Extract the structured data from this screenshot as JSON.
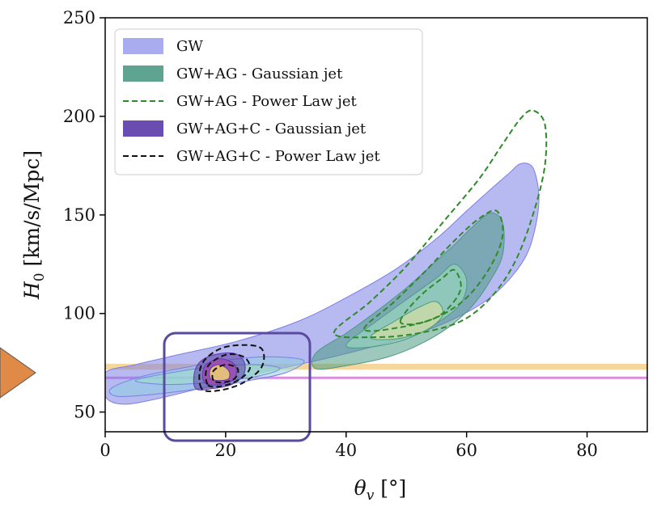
{
  "chart_data": {
    "type": "contour",
    "xlabel": "θ_v [°]",
    "ylabel": "H_0 [km/s/Mpc]",
    "xlim": [
      0,
      90
    ],
    "ylim": [
      40,
      250
    ],
    "xticks": [
      0,
      20,
      40,
      60,
      80
    ],
    "yticks": [
      50,
      100,
      150,
      200,
      250
    ],
    "legend_position": "top-left",
    "reference_bands": [
      {
        "name": "Planck-like band",
        "y_range": [
          71.5,
          74.5
        ],
        "color": "#f2c97e"
      },
      {
        "name": "reference line",
        "y": 67.4,
        "color": "#d98ee0"
      }
    ],
    "series": [
      {
        "name": "GW",
        "style": "filled",
        "color": "#7b7fe6",
        "contours": [
          {
            "level": "outer",
            "points": [
              [
                0,
                58
              ],
              [
                0,
                70
              ],
              [
                5,
                74
              ],
              [
                12,
                79
              ],
              [
                22,
                86
              ],
              [
                32,
                96
              ],
              [
                40,
                108
              ],
              [
                48,
                122
              ],
              [
                55,
                138
              ],
              [
                60,
                152
              ],
              [
                64,
                163
              ],
              [
                67,
                171
              ],
              [
                69,
                176
              ],
              [
                71,
                174
              ],
              [
                72,
                160
              ],
              [
                71.5,
                145
              ],
              [
                70,
                130
              ],
              [
                67,
                117
              ],
              [
                63,
                106
              ],
              [
                57,
                96
              ],
              [
                50,
                88
              ],
              [
                43,
                82
              ],
              [
                35,
                76
              ],
              [
                26,
                70
              ],
              [
                17,
                63
              ],
              [
                9,
                57
              ],
              [
                3,
                54
              ]
            ]
          },
          {
            "level": "middle",
            "points": [
              [
                1,
                62
              ],
              [
                6,
                68
              ],
              [
                14,
                73
              ],
              [
                22,
                77
              ],
              [
                28,
                78
              ],
              [
                33,
                76
              ],
              [
                30,
                70
              ],
              [
                24,
                66
              ],
              [
                16,
                62
              ],
              [
                8,
                59
              ],
              [
                2,
                58
              ]
            ]
          },
          {
            "level": "inner",
            "points": [
              [
                5,
                66
              ],
              [
                11,
                70
              ],
              [
                18,
                73
              ],
              [
                25,
                74
              ],
              [
                29,
                72
              ],
              [
                25,
                68
              ],
              [
                17,
                65
              ],
              [
                10,
                64
              ]
            ]
          }
        ]
      },
      {
        "name": "GW+AG - Gaussian jet",
        "style": "filled",
        "color": "#4c9a84",
        "contours": [
          {
            "level": "outer",
            "points": [
              [
                35,
                72
              ],
              [
                35,
                80
              ],
              [
                40,
                90
              ],
              [
                45,
                101
              ],
              [
                50,
                113
              ],
              [
                54,
                124
              ],
              [
                58,
                135
              ],
              [
                61,
                144
              ],
              [
                64,
                151
              ],
              [
                66,
                146
              ],
              [
                66,
                130
              ],
              [
                64,
                117
              ],
              [
                61,
                104
              ],
              [
                57,
                93
              ],
              [
                52,
                84
              ],
              [
                47,
                78
              ],
              [
                41,
                74
              ]
            ]
          },
          {
            "level": "middle",
            "points": [
              [
                40,
                84
              ],
              [
                45,
                96
              ],
              [
                50,
                107
              ],
              [
                55,
                118
              ],
              [
                58,
                125
              ],
              [
                60,
                117
              ],
              [
                59,
                105
              ],
              [
                55,
                95
              ],
              [
                50,
                87
              ],
              [
                44,
                83
              ]
            ]
          },
          {
            "level": "inner",
            "points": [
              [
                44,
                88
              ],
              [
                48,
                96
              ],
              [
                52,
                103
              ],
              [
                55,
                106
              ],
              [
                56,
                99
              ],
              [
                53,
                91
              ],
              [
                48,
                87
              ]
            ]
          }
        ]
      },
      {
        "name": "GW+AG - Power Law jet",
        "style": "dashed",
        "color": "#2f8a2a",
        "contours": [
          {
            "level": "outer",
            "points": [
              [
                38,
                90
              ],
              [
                44,
                106
              ],
              [
                50,
                124
              ],
              [
                56,
                146
              ],
              [
                62,
                168
              ],
              [
                66,
                186
              ],
              [
                69,
                199
              ],
              [
                71,
                203
              ],
              [
                73,
                196
              ],
              [
                73,
                175
              ],
              [
                71,
                150
              ],
              [
                68,
                126
              ],
              [
                64,
                108
              ],
              [
                59,
                96
              ],
              [
                52,
                90
              ],
              [
                45,
                88
              ]
            ]
          },
          {
            "level": "middle",
            "points": [
              [
                43,
                92
              ],
              [
                48,
                106
              ],
              [
                53,
                121
              ],
              [
                58,
                137
              ],
              [
                62,
                148
              ],
              [
                65,
                152
              ],
              [
                66,
                140
              ],
              [
                64,
                124
              ],
              [
                60,
                108
              ],
              [
                55,
                98
              ],
              [
                49,
                93
              ]
            ]
          },
          {
            "level": "inner",
            "points": [
              [
                49,
                96
              ],
              [
                52,
                108
              ],
              [
                56,
                118
              ],
              [
                58,
                122
              ],
              [
                59,
                112
              ],
              [
                56,
                100
              ],
              [
                52,
                95
              ]
            ]
          }
        ]
      },
      {
        "name": "GW+AG+C - Gaussian jet",
        "style": "filled",
        "color": "#5b3aa8",
        "contours": [
          {
            "level": "outer",
            "points": [
              [
                15,
                62
              ],
              [
                15,
                72
              ],
              [
                17,
                78
              ],
              [
                21,
                80
              ],
              [
                23,
                76
              ],
              [
                23,
                69
              ],
              [
                21,
                64
              ],
              [
                18,
                62
              ]
            ]
          },
          {
            "level": "middle",
            "points": [
              [
                16.5,
                65
              ],
              [
                16.5,
                73
              ],
              [
                19,
                77
              ],
              [
                21.5,
                74
              ],
              [
                21.5,
                67
              ],
              [
                19,
                64
              ]
            ]
          },
          {
            "level": "inner",
            "points": [
              [
                17.5,
                67
              ],
              [
                17.5,
                72
              ],
              [
                19,
                74
              ],
              [
                20.5,
                71
              ],
              [
                20.5,
                67
              ],
              [
                19,
                66
              ]
            ]
          }
        ]
      },
      {
        "name": "GW+AG+C - Power Law jet",
        "style": "dashed",
        "color": "#111111",
        "contours": [
          {
            "level": "outer",
            "points": [
              [
                16,
                62
              ],
              [
                16,
                74
              ],
              [
                19,
                82
              ],
              [
                23,
                84
              ],
              [
                26,
                82
              ],
              [
                26,
                73
              ],
              [
                23,
                65
              ],
              [
                19,
                61
              ]
            ]
          },
          {
            "level": "middle",
            "points": [
              [
                17,
                64
              ],
              [
                17,
                73
              ],
              [
                20,
                79
              ],
              [
                23,
                78
              ],
              [
                24,
                72
              ],
              [
                22,
                66
              ],
              [
                19,
                63
              ]
            ]
          },
          {
            "level": "inner",
            "points": [
              [
                18,
                66
              ],
              [
                18,
                71
              ],
              [
                20,
                74
              ],
              [
                22,
                72
              ],
              [
                21.5,
                67
              ],
              [
                19.5,
                65
              ]
            ]
          }
        ]
      }
    ]
  },
  "annotations": {
    "highlight_box_color": "#5a4aa0",
    "side_arrow_color": "#e08a48"
  }
}
